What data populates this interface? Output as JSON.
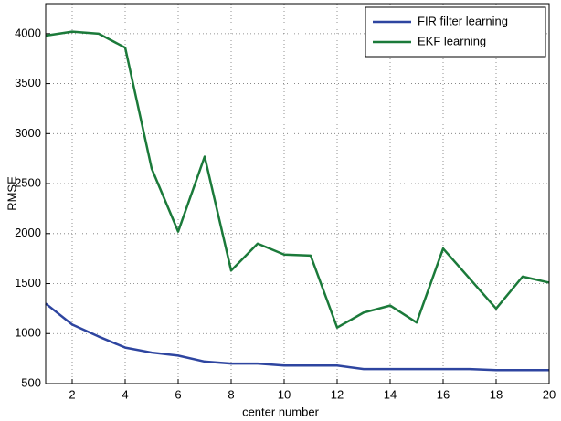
{
  "chart_data": {
    "type": "line",
    "x_label": "center number",
    "y_label": "RMSE",
    "x": [
      1,
      2,
      3,
      4,
      5,
      6,
      7,
      8,
      9,
      10,
      11,
      12,
      13,
      14,
      15,
      16,
      17,
      18,
      19,
      20
    ],
    "series": [
      {
        "name": "FIR filter learning",
        "color": "#2e45a0",
        "values": [
          1300,
          1090,
          970,
          860,
          810,
          780,
          720,
          700,
          700,
          680,
          680,
          680,
          645,
          645,
          645,
          645,
          645,
          635,
          635,
          635
        ]
      },
      {
        "name": "EKF learning",
        "color": "#1b7a3a",
        "values": [
          3980,
          4020,
          4000,
          3860,
          2650,
          2020,
          2770,
          1630,
          1900,
          1790,
          1780,
          1060,
          1210,
          1280,
          1110,
          1850,
          1550,
          1250,
          1570,
          1510
        ]
      }
    ],
    "xlim": [
      1,
      20
    ],
    "xticks": [
      2,
      4,
      6,
      8,
      10,
      12,
      14,
      16,
      18,
      20
    ],
    "ylim": [
      500,
      4300
    ],
    "yticks": [
      500,
      1000,
      1500,
      2000,
      2500,
      3000,
      3500,
      4000
    ],
    "grid": true,
    "legend": "top-right"
  }
}
